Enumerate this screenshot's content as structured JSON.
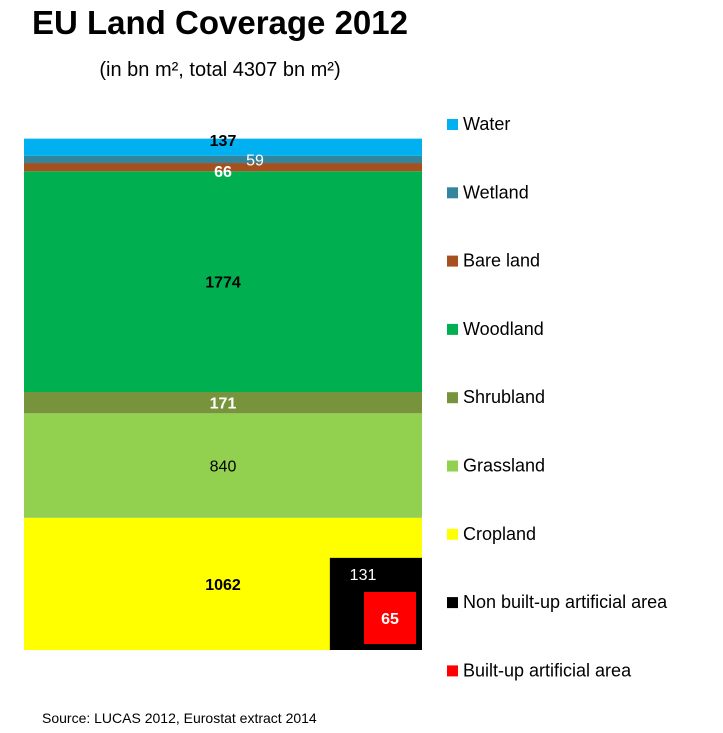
{
  "chart_data": {
    "type": "bar",
    "title": "EU Land Coverage 2012",
    "subtitle": "(in bn m², total 4307 bn m²)",
    "source": "Source: LUCAS 2012, Eurostat extract 2014",
    "total": 4307,
    "stack": [
      {
        "name": "Cropland",
        "value": 1062,
        "label": "1062",
        "color": "#FFFF00",
        "label_color": "#000000",
        "label_bold": true
      },
      {
        "name": "Grassland",
        "value": 840,
        "label": "840",
        "color": "#92D050",
        "label_color": "#000000",
        "label_bold": false
      },
      {
        "name": "Shrubland",
        "value": 171,
        "label": "171",
        "color": "#77933C",
        "label_color": "#FFFFFF",
        "label_bold": true
      },
      {
        "name": "Woodland",
        "value": 1774,
        "label": "1774",
        "color": "#00B050",
        "label_color": "#000000",
        "label_bold": true
      },
      {
        "name": "Bare land",
        "value": 66,
        "label": "66",
        "color": "#A5501E",
        "label_color": "#FFFFFF",
        "label_bold": true
      },
      {
        "name": "Wetland",
        "value": 59,
        "label": "59",
        "color": "#31859C",
        "label_color": "#FFFFFF",
        "label_bold": false
      },
      {
        "name": "Water",
        "value": 137,
        "label": "137",
        "color": "#00B0F0",
        "label_color": "#000000",
        "label_bold": true
      }
    ],
    "inset": [
      {
        "name": "Non built-up artificial area",
        "value": 131,
        "label": "131",
        "color": "#000000",
        "label_color": "#FFFFFF",
        "label_bold": false
      },
      {
        "name": "Built-up artificial area",
        "value": 65,
        "label": "65",
        "color": "#FF0000",
        "label_color": "#FFFFFF",
        "label_bold": true
      }
    ],
    "legend": [
      {
        "name": "Water",
        "color": "#00B0F0"
      },
      {
        "name": "Wetland",
        "color": "#31859C"
      },
      {
        "name": "Bare land",
        "color": "#A5501E"
      },
      {
        "name": "Woodland",
        "color": "#00B050"
      },
      {
        "name": "Shrubland",
        "color": "#77933C"
      },
      {
        "name": "Grassland",
        "color": "#92D050"
      },
      {
        "name": "Cropland",
        "color": "#FFFF00"
      },
      {
        "name": "Non built-up artificial area",
        "color": "#000000"
      },
      {
        "name": "Built-up artificial area",
        "color": "#FF0000"
      }
    ],
    "legend_position": "right"
  }
}
